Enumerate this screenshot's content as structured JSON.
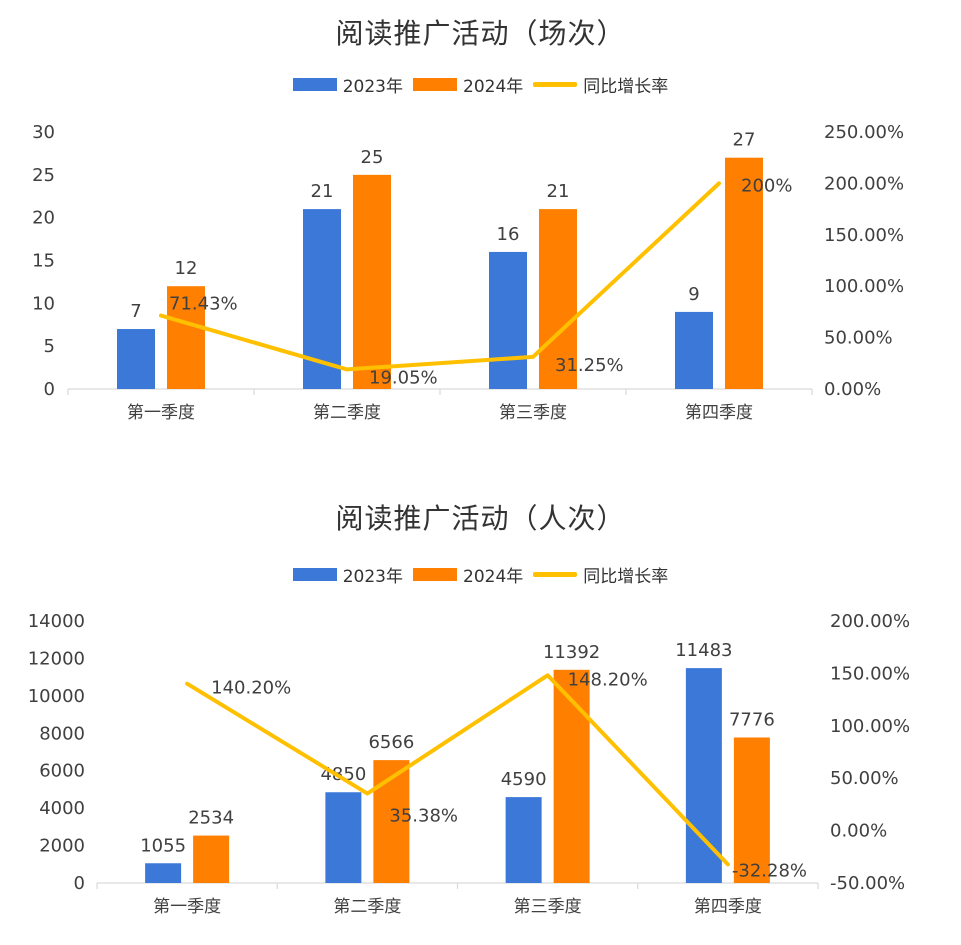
{
  "chart_data": [
    {
      "type": "bar",
      "title": "阅读推广活动（场次）",
      "categories": [
        "第一季度",
        "第二季度",
        "第三季度",
        "第四季度"
      ],
      "series": [
        {
          "name": "2023年",
          "type": "bar",
          "axis": "left",
          "color": "#3C78D8",
          "values": [
            7,
            21,
            16,
            9
          ],
          "labels": [
            "7",
            "21",
            "16",
            "9"
          ]
        },
        {
          "name": "2024年",
          "type": "bar",
          "axis": "left",
          "color": "#FF7F00",
          "values": [
            12,
            25,
            21,
            27
          ],
          "labels": [
            "12",
            "25",
            "21",
            "27"
          ]
        },
        {
          "name": "同比增长率",
          "type": "line",
          "axis": "right",
          "color": "#FFC000",
          "values": [
            71.43,
            19.05,
            31.25,
            200
          ],
          "labels": [
            "71.43%",
            "19.05%",
            "31.25%",
            "200%"
          ]
        }
      ],
      "ylim": [
        0,
        30
      ],
      "yticks": [
        "0",
        "5",
        "10",
        "15",
        "20",
        "25",
        "30"
      ],
      "y2lim": [
        0,
        250
      ],
      "y2ticks": [
        "0.00%",
        "50.00%",
        "100.00%",
        "150.00%",
        "200.00%",
        "250.00%"
      ],
      "legend": "top",
      "grid": false
    },
    {
      "type": "bar",
      "title": "阅读推广活动（人次）",
      "categories": [
        "第一季度",
        "第二季度",
        "第三季度",
        "第四季度"
      ],
      "series": [
        {
          "name": "2023年",
          "type": "bar",
          "axis": "left",
          "color": "#3C78D8",
          "values": [
            1055,
            4850,
            4590,
            11483
          ],
          "labels": [
            "1055",
            "4850",
            "4590",
            "11483"
          ]
        },
        {
          "name": "2024年",
          "type": "bar",
          "axis": "left",
          "color": "#FF7F00",
          "values": [
            2534,
            6566,
            11392,
            7776
          ],
          "labels": [
            "2534",
            "6566",
            "11392",
            "7776"
          ]
        },
        {
          "name": "同比增长率",
          "type": "line",
          "axis": "right",
          "color": "#FFC000",
          "values": [
            140.2,
            35.38,
            148.2,
            -32.28
          ],
          "labels": [
            "140.20%",
            "35.38%",
            "148.20%",
            "-32.28%"
          ]
        }
      ],
      "ylim": [
        0,
        14000
      ],
      "yticks": [
        "0",
        "2000",
        "4000",
        "6000",
        "8000",
        "10000",
        "12000",
        "14000"
      ],
      "y2lim": [
        -50,
        200
      ],
      "y2ticks": [
        "-50.00%",
        "0.00%",
        "50.00%",
        "100.00%",
        "150.00%",
        "200.00%"
      ],
      "legend": "top",
      "grid": false
    }
  ]
}
